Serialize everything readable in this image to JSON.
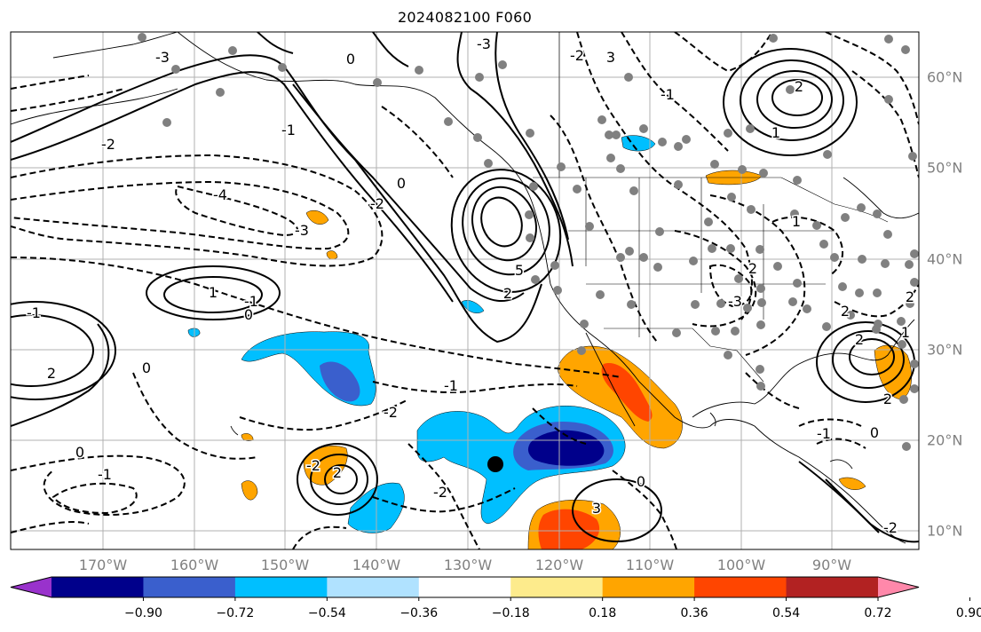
{
  "title": "2024082100 F060",
  "colorbar": {
    "colors": [
      "#9932cc",
      "#00008b",
      "#3a5fcd",
      "#00bfff",
      "#b0e2ff",
      "#ffffff",
      "#fdeb8c",
      "#ffa500",
      "#ff4500",
      "#b22222",
      "#ff88aa"
    ],
    "tick_labels": [
      "−0.90",
      "−0.72",
      "−0.54",
      "−0.36",
      "−0.18",
      "0.18",
      "0.36",
      "0.54",
      "0.72",
      "0.90"
    ]
  },
  "map": {
    "lon_labels": [
      "170°W",
      "160°W",
      "150°W",
      "140°W",
      "130°W",
      "120°W",
      "110°W",
      "100°W",
      "90°W"
    ],
    "lat_labels": [
      "60°N",
      "50°N",
      "40°N",
      "30°N",
      "20°N",
      "10°N"
    ],
    "contour_labels": [
      "-3",
      "0",
      "-3",
      "-2",
      "3",
      "-2",
      "-1",
      "-4",
      "-3",
      "0",
      "-2",
      "-1",
      "-1",
      "0",
      "1",
      "-1",
      "-2",
      "5",
      "2",
      "0",
      "2",
      "-2",
      "2",
      "0",
      "-2",
      "0",
      "-1",
      "3",
      "2",
      "1",
      "-1",
      "1",
      "2",
      "2",
      "-3",
      "2",
      "2",
      "0",
      "-1",
      "1",
      "2",
      "-2"
    ],
    "marker": "storm-center-dot"
  }
}
